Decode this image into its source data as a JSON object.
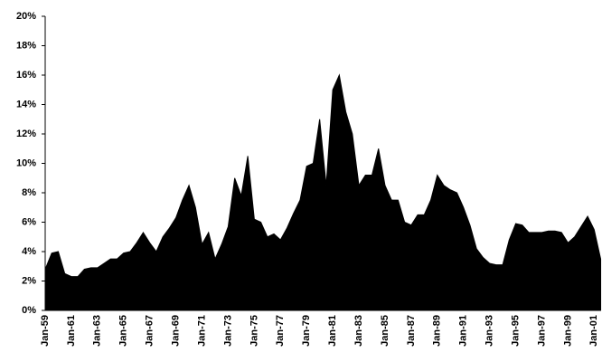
{
  "chart_data": {
    "type": "area",
    "color": "#000000",
    "categories": [
      "Jan-59",
      null,
      null,
      null,
      "Jan-61",
      null,
      null,
      null,
      "Jan-63",
      null,
      null,
      null,
      "Jan-65",
      null,
      null,
      null,
      "Jan-67",
      null,
      null,
      null,
      "Jan-69",
      null,
      null,
      null,
      "Jan-71",
      null,
      null,
      null,
      "Jan-73",
      null,
      null,
      null,
      "Jan-75",
      null,
      null,
      null,
      "Jan-77",
      null,
      null,
      null,
      "Jan-79",
      null,
      null,
      null,
      "Jan-81",
      null,
      null,
      null,
      "Jan-83",
      null,
      null,
      null,
      "Jan-85",
      null,
      null,
      null,
      "Jan-87",
      null,
      null,
      null,
      "Jan-89",
      null,
      null,
      null,
      "Jan-91",
      null,
      null,
      null,
      "Jan-93",
      null,
      null,
      null,
      "Jan-95",
      null,
      null,
      null,
      "Jan-97",
      null,
      null,
      null,
      "Jan-99",
      null,
      null,
      null,
      "Jan-01",
      null
    ],
    "values": [
      2.8,
      3.9,
      4.0,
      2.5,
      2.3,
      2.3,
      2.8,
      2.9,
      2.9,
      3.2,
      3.5,
      3.5,
      3.9,
      4.0,
      4.6,
      5.3,
      4.6,
      4.0,
      5.0,
      5.6,
      6.3,
      7.5,
      8.5,
      7.0,
      4.5,
      5.3,
      3.5,
      4.5,
      5.7,
      9.0,
      7.8,
      10.5,
      6.2,
      6.0,
      5.0,
      5.2,
      4.8,
      5.6,
      6.6,
      7.5,
      9.8,
      10.0,
      13.0,
      8.5,
      15.0,
      16.0,
      13.5,
      12.0,
      8.5,
      9.2,
      9.2,
      11.0,
      8.5,
      7.5,
      7.5,
      6.0,
      5.8,
      6.5,
      6.5,
      7.5,
      9.2,
      8.5,
      8.2,
      8.0,
      7.0,
      5.8,
      4.2,
      3.6,
      3.2,
      3.1,
      3.1,
      4.8,
      5.9,
      5.8,
      5.3,
      5.3,
      5.3,
      5.4,
      5.4,
      5.3,
      4.6,
      5.0,
      5.7,
      6.4,
      5.5,
      3.5
    ],
    "ylim": [
      0,
      20
    ],
    "yticks": [
      {
        "value": 0,
        "label": "0%"
      },
      {
        "value": 2,
        "label": "2%"
      },
      {
        "value": 4,
        "label": "4%"
      },
      {
        "value": 6,
        "label": "6%"
      },
      {
        "value": 8,
        "label": "8%"
      },
      {
        "value": 10,
        "label": "10%"
      },
      {
        "value": 12,
        "label": "12%"
      },
      {
        "value": 14,
        "label": "14%"
      },
      {
        "value": 16,
        "label": "16%"
      },
      {
        "value": 18,
        "label": "18%"
      },
      {
        "value": 20,
        "label": "20%"
      }
    ],
    "grid": false
  }
}
